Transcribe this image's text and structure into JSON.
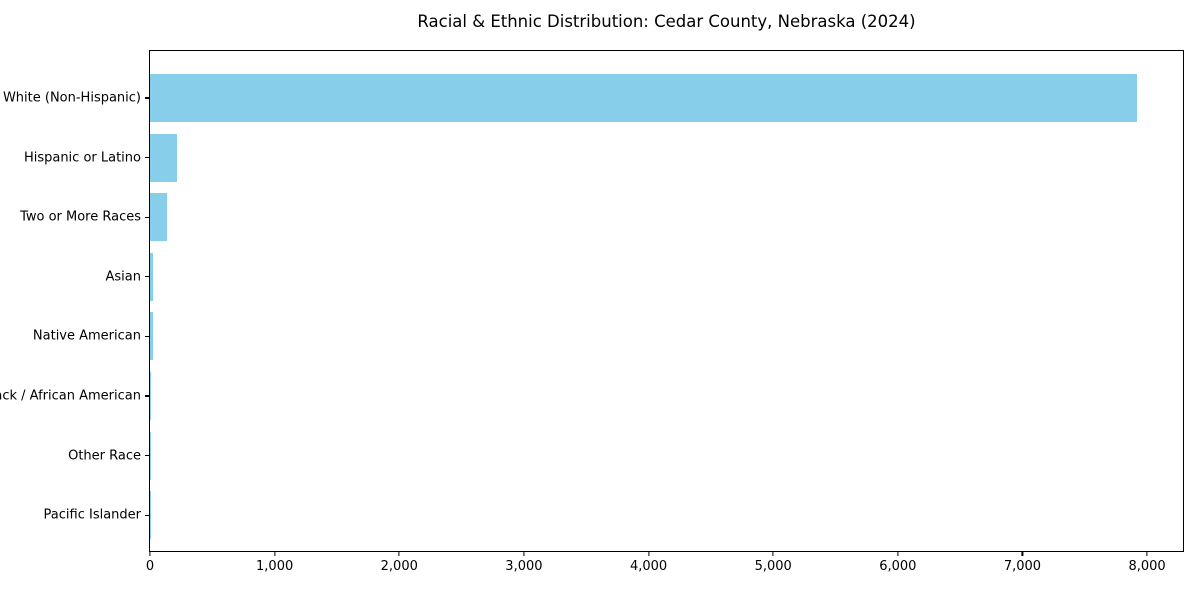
{
  "chart_data": {
    "type": "bar",
    "orientation": "horizontal",
    "title": "Racial & Ethnic Distribution: Cedar County, Nebraska (2024)",
    "categories": [
      "White (Non-Hispanic)",
      "Hispanic or Latino",
      "Two or More Races",
      "Asian",
      "Native American",
      "Black / African American",
      "Other Race",
      "Pacific Islander"
    ],
    "values": [
      7900,
      215,
      135,
      25,
      25,
      10,
      5,
      1
    ],
    "xlabel": "",
    "ylabel": "",
    "xlim": [
      0,
      8288
    ],
    "xticks": [
      0,
      1000,
      2000,
      3000,
      4000,
      5000,
      6000,
      7000,
      8000
    ],
    "xtick_labels": [
      "0",
      "1,000",
      "2,000",
      "3,000",
      "4,000",
      "5,000",
      "6,000",
      "7,000",
      "8,000"
    ],
    "bar_color": "#87CEEB",
    "text_color": "#000000",
    "grid": false,
    "legend": null
  }
}
